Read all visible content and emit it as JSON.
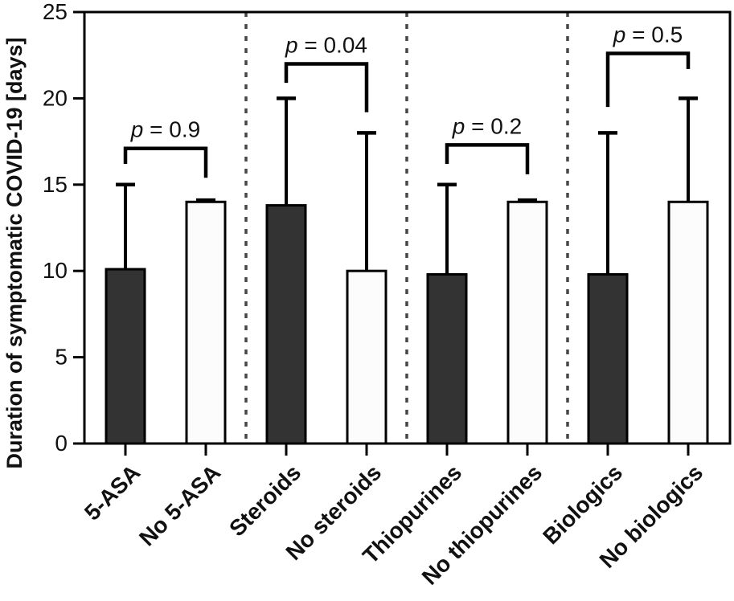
{
  "figure": {
    "background_color": "#ffffff",
    "frame_color": "#000000"
  },
  "chart_data": {
    "type": "bar",
    "title": "",
    "xlabel": "",
    "ylabel": "Duration of symptomatic COVID-19 [days]",
    "ylim": [
      0,
      25
    ],
    "yticks": [
      0,
      5,
      10,
      15,
      20,
      25
    ],
    "grid": false,
    "legend": "none",
    "frame": "full-box",
    "separator_style": "dashed-vertical",
    "separator_color": "#474747",
    "bar_colors": {
      "dark": "#333333",
      "light": "#fcfcfc",
      "edge": "#000000"
    },
    "categories": [
      "5-ASA",
      "No 5-ASA",
      "Steroids",
      "No steroids",
      "Thiopurines",
      "No thiopurines",
      "Biologics",
      "No biologics"
    ],
    "groups": [
      {
        "name": "5-ASA vs No 5-ASA",
        "p_label": "p = 0.9",
        "bracket": {
          "y_days": 17.1,
          "left_drop_to_days": 16.2,
          "right_drop_to_days": 15.4
        },
        "bars": [
          {
            "category": "5-ASA",
            "value": 10.1,
            "error_top": 15.0,
            "style": "dark"
          },
          {
            "category": "No 5-ASA",
            "value": 14.0,
            "error_top": 14.1,
            "style": "light"
          }
        ]
      },
      {
        "name": "Steroids vs No steroids",
        "p_label": "p = 0.04",
        "bracket": {
          "y_days": 22.0,
          "left_drop_to_days": 20.9,
          "right_drop_to_days": 19.2
        },
        "bars": [
          {
            "category": "Steroids",
            "value": 13.8,
            "error_top": 20.0,
            "style": "dark"
          },
          {
            "category": "No steroids",
            "value": 10.0,
            "error_top": 18.0,
            "style": "light"
          }
        ]
      },
      {
        "name": "Thiopurines vs No thiopurines",
        "p_label": "p = 0.2",
        "bracket": {
          "y_days": 17.3,
          "left_drop_to_days": 16.2,
          "right_drop_to_days": 15.6
        },
        "bars": [
          {
            "category": "Thiopurines",
            "value": 9.8,
            "error_top": 15.0,
            "style": "dark"
          },
          {
            "category": "No thiopurines",
            "value": 14.0,
            "error_top": 14.1,
            "style": "light"
          }
        ]
      },
      {
        "name": "Biologics vs No biologics",
        "p_label": "p = 0.5",
        "bracket": {
          "y_days": 22.6,
          "left_drop_to_days": 19.5,
          "right_drop_to_days": 21.7
        },
        "bars": [
          {
            "category": "Biologics",
            "value": 9.8,
            "error_top": 18.0,
            "style": "dark"
          },
          {
            "category": "No biologics",
            "value": 14.0,
            "error_top": 20.0,
            "style": "light"
          }
        ]
      }
    ]
  }
}
